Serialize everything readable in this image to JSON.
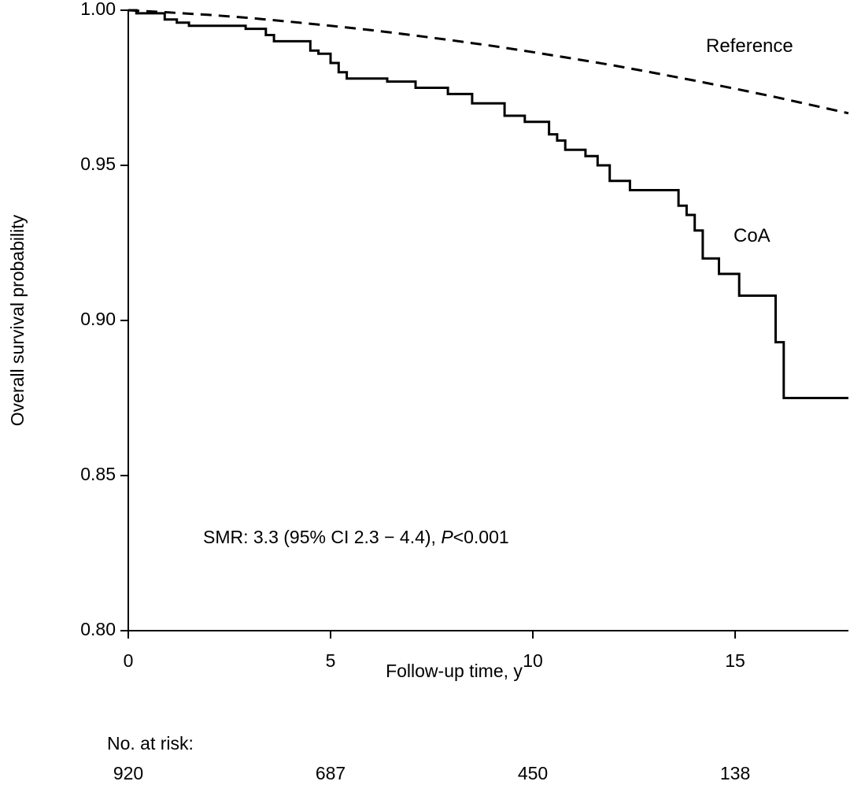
{
  "chart_data": {
    "type": "line",
    "title": "",
    "xlabel": "Follow-up time, y",
    "ylabel": "Overall survival probability",
    "xlim": [
      0,
      17.8
    ],
    "ylim": [
      0.8,
      1.0
    ],
    "x_ticks": [
      0,
      5,
      10,
      15
    ],
    "x_tick_labels": [
      "0",
      "5",
      "10",
      "15"
    ],
    "y_ticks": [
      0.8,
      0.85,
      0.9,
      0.95,
      1.0
    ],
    "y_tick_labels": [
      "0.80",
      "0.85",
      "0.90",
      "0.95",
      "1.00"
    ],
    "grid": false,
    "series": [
      {
        "name": "Reference",
        "style": "dashed",
        "x": [
          0,
          1,
          2,
          3,
          4,
          5,
          6,
          7,
          8,
          9,
          10,
          11,
          12,
          13,
          14,
          15,
          16,
          17,
          17.8
        ],
        "y": [
          1.0,
          0.9993,
          0.9985,
          0.9975,
          0.9963,
          0.995,
          0.9936,
          0.992,
          0.9903,
          0.9885,
          0.9865,
          0.9844,
          0.9822,
          0.9798,
          0.9773,
          0.9747,
          0.972,
          0.9691,
          0.9668
        ]
      },
      {
        "name": "CoA",
        "style": "solid-step",
        "x": [
          0,
          0.2,
          0.9,
          1.2,
          1.5,
          2.9,
          3.4,
          3.6,
          4.5,
          4.7,
          5.0,
          5.2,
          5.4,
          5.6,
          6.4,
          7.1,
          7.9,
          8.5,
          9.3,
          9.8,
          10.4,
          10.6,
          10.8,
          11.3,
          11.6,
          11.9,
          12.4,
          13.6,
          13.8,
          14.0,
          14.2,
          14.6,
          15.1,
          16.0,
          16.2,
          17.8
        ],
        "y": [
          1.0,
          0.999,
          0.997,
          0.996,
          0.995,
          0.994,
          0.992,
          0.99,
          0.987,
          0.986,
          0.983,
          0.98,
          0.978,
          0.978,
          0.977,
          0.975,
          0.973,
          0.97,
          0.966,
          0.964,
          0.96,
          0.958,
          0.955,
          0.953,
          0.95,
          0.945,
          0.942,
          0.937,
          0.934,
          0.929,
          0.92,
          0.915,
          0.908,
          0.893,
          0.875,
          0.875
        ]
      }
    ],
    "series_labels": {
      "reference": "Reference",
      "coa": "CoA"
    },
    "annotation": {
      "prefix": "SMR: 3.3 (95% CI 2.3 − 4.4), ",
      "p_symbol": "P",
      "p_value": "<0.001"
    },
    "risk_table": {
      "label": "No. at risk:",
      "values": [
        "920",
        "687",
        "450",
        "138"
      ]
    }
  }
}
